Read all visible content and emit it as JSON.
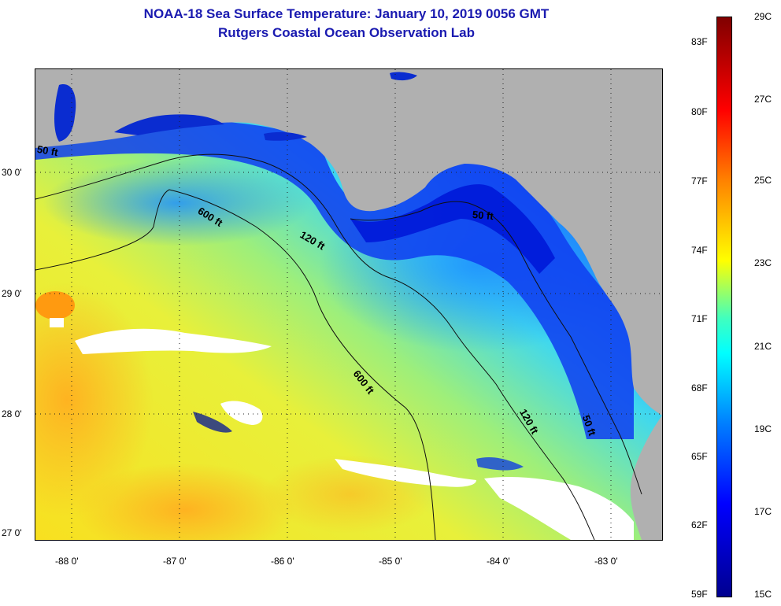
{
  "title": "NOAA-18 Sea Surface Temperature:  January 10, 2019 0056 GMT",
  "subtitle": "Rutgers Coastal Ocean Observation Lab",
  "lat_labels": [
    "30 0'",
    "29 0'",
    "28 0'",
    "27 0'"
  ],
  "lon_labels": [
    "-88 0'",
    "-87 0'",
    "-86 0'",
    "-85 0'",
    "-84 0'",
    "-83 0'"
  ],
  "contour_labels": {
    "c50_west": "50 ft",
    "c600_north": "600 ft",
    "c120_north": "120 ft",
    "c50_east": "50 ft",
    "c600_south": "600 ft",
    "c120_south": "120 ft",
    "c50_south": "50 ft"
  },
  "colorbar": {
    "f_labels": [
      "83F",
      "80F",
      "77F",
      "74F",
      "71F",
      "68F",
      "65F",
      "62F",
      "59F"
    ],
    "c_labels": [
      "29C",
      "27C",
      "25C",
      "23C",
      "21C",
      "19C",
      "17C",
      "15C"
    ],
    "colors": [
      "#00008f",
      "#0000ff",
      "#0080ff",
      "#00ffff",
      "#ffff00",
      "#ff8000",
      "#ff0000",
      "#800000"
    ]
  },
  "colors": {
    "title": "#1a1ab0",
    "land": "#b0b0b0",
    "cloud": "#ffffff"
  }
}
